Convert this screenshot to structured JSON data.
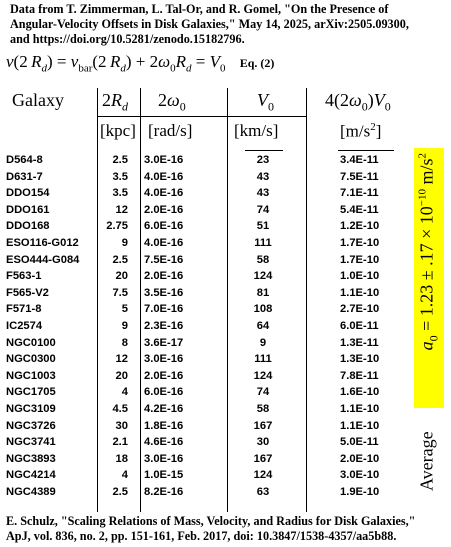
{
  "header": {
    "line1": "Data from T. Zimmerman, L. Tal-Or, and R. Gomel, \"On the Presence of",
    "line2": "Angular-Velocity Offsets in Disk Galaxies,\" May 14, 2025, arXiv:2505.09300,",
    "line3": "and https://doi.org/10.5281/zenodo.15182796."
  },
  "equation": {
    "text": "v(2 Rd) = vbar(2 Rd) + 2ω0Rd = V0",
    "tag": "Eq. (2)"
  },
  "columns": {
    "galaxy": "Galaxy",
    "rd": "2Rd",
    "w0": "2ω0",
    "v0": "V0",
    "acc": "4(2ω0)V0"
  },
  "units": {
    "rd": "[kpc]",
    "w0": "[rad/s]",
    "v0": "[km/s]",
    "acc": "[m/s2]"
  },
  "rows": [
    {
      "galaxy": "D564-8",
      "rd": "2.5",
      "w0": "3.0E-16",
      "v0": "23",
      "acc": "3.4E-11"
    },
    {
      "galaxy": "D631-7",
      "rd": "3.5",
      "w0": "4.0E-16",
      "v0": "43",
      "acc": "7.5E-11"
    },
    {
      "galaxy": "DDO154",
      "rd": "3.5",
      "w0": "4.0E-16",
      "v0": "43",
      "acc": "7.1E-11"
    },
    {
      "galaxy": "DDO161",
      "rd": "12",
      "w0": "2.0E-16",
      "v0": "74",
      "acc": "5.4E-11"
    },
    {
      "galaxy": "DDO168",
      "rd": "2.75",
      "w0": "6.0E-16",
      "v0": "51",
      "acc": "1.2E-10"
    },
    {
      "galaxy": "ESO116-G012",
      "rd": "9",
      "w0": "4.0E-16",
      "v0": "111",
      "acc": "1.7E-10"
    },
    {
      "galaxy": "ESO444-G084",
      "rd": "2.5",
      "w0": "7.5E-16",
      "v0": "58",
      "acc": "1.7E-10"
    },
    {
      "galaxy": "F563-1",
      "rd": "20",
      "w0": "2.0E-16",
      "v0": "124",
      "acc": "1.0E-10"
    },
    {
      "galaxy": "F565-V2",
      "rd": "7.5",
      "w0": "3.5E-16",
      "v0": "81",
      "acc": "1.1E-10"
    },
    {
      "galaxy": "F571-8",
      "rd": "5",
      "w0": "7.0E-16",
      "v0": "108",
      "acc": "2.7E-10"
    },
    {
      "galaxy": "IC2574",
      "rd": "9",
      "w0": "2.3E-16",
      "v0": "64",
      "acc": "6.0E-11"
    },
    {
      "galaxy": "NGC0100",
      "rd": "8",
      "w0": "3.6E-17",
      "v0": "9",
      "acc": "1.3E-11"
    },
    {
      "galaxy": "NGC0300",
      "rd": "12",
      "w0": "3.0E-16",
      "v0": "111",
      "acc": "1.3E-10"
    },
    {
      "galaxy": "NGC1003",
      "rd": "20",
      "w0": "2.0E-16",
      "v0": "124",
      "acc": "7.8E-11"
    },
    {
      "galaxy": "NGC1705",
      "rd": "4",
      "w0": "6.0E-16",
      "v0": "74",
      "acc": "1.6E-10"
    },
    {
      "galaxy": "NGC3109",
      "rd": "4.5",
      "w0": "4.2E-16",
      "v0": "58",
      "acc": "1.1E-10"
    },
    {
      "galaxy": "NGC3726",
      "rd": "30",
      "w0": "1.8E-16",
      "v0": "167",
      "acc": "1.1E-10"
    },
    {
      "galaxy": "NGC3741",
      "rd": "2.1",
      "w0": "4.6E-16",
      "v0": "30",
      "acc": "5.0E-11"
    },
    {
      "galaxy": "NGC3893",
      "rd": "18",
      "w0": "3.0E-16",
      "v0": "167",
      "acc": "2.0E-10"
    },
    {
      "galaxy": "NGC4214",
      "rd": "4",
      "w0": "1.0E-15",
      "v0": "124",
      "acc": "3.0E-10"
    },
    {
      "galaxy": "NGC4389",
      "rd": "2.5",
      "w0": "8.2E-16",
      "v0": "63",
      "acc": "1.9E-10"
    }
  ],
  "average": {
    "label": "Average",
    "value": "a0 = 1.23 ± .17 × 10−10 m/s2",
    "highlight_color": "#ffff00"
  },
  "footer": {
    "line1": "E. Schulz, \"Scaling Relations of Mass, Velocity, and Radius for Disk Galaxies,\"",
    "line2": "ApJ, vol. 836, no. 2, pp. 151-161, Feb. 2017, doi: 10.3847/1538-4357/aa5b88."
  }
}
